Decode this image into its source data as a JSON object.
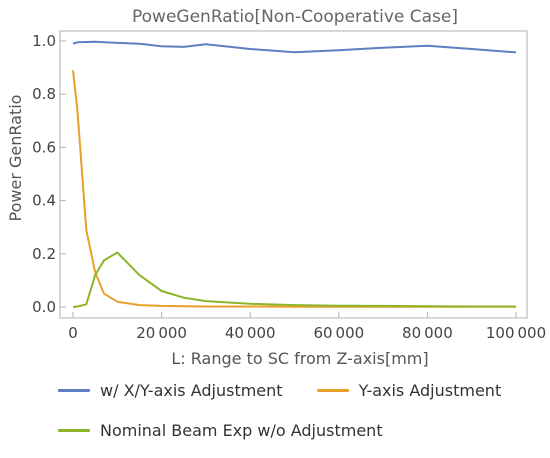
{
  "chart_data": {
    "type": "line",
    "title": "PoweGenRatio[Non-Cooperative Case]",
    "xlabel": "L: Range to SC from Z-axis[mm]",
    "ylabel": "Power GenRatio",
    "xlim": [
      0,
      100000
    ],
    "ylim": [
      0,
      1.0
    ],
    "x_ticks": [
      0,
      20000,
      40000,
      60000,
      80000,
      100000
    ],
    "x_tick_labels": [
      "0",
      "20 000",
      "40 000",
      "60 000",
      "80 000",
      "100 000"
    ],
    "y_ticks": [
      0.0,
      0.2,
      0.4,
      0.6,
      0.8,
      1.0
    ],
    "y_tick_labels": [
      "0.0",
      "0.2",
      "0.4",
      "0.6",
      "0.8",
      "1.0"
    ],
    "grid": false,
    "legend_position": "bottom",
    "series": [
      {
        "name": "w/ X/Y-axis Adjustment",
        "color": "#5b7fc1",
        "x": [
          0,
          1000,
          5000,
          10000,
          15000,
          20000,
          25000,
          30000,
          40000,
          50000,
          60000,
          70000,
          80000,
          90000,
          100000
        ],
        "y": [
          0.99,
          0.995,
          0.997,
          0.993,
          0.99,
          0.98,
          0.978,
          0.988,
          0.97,
          0.958,
          0.965,
          0.975,
          0.982,
          0.97,
          0.957
        ]
      },
      {
        "name": "Y-axis Adjustment",
        "color": "#e8a02a",
        "x": [
          0,
          1000,
          3000,
          5000,
          7000,
          10000,
          15000,
          20000,
          25000,
          30000,
          40000,
          50000,
          60000,
          70000,
          80000,
          90000,
          100000
        ],
        "y": [
          0.89,
          0.74,
          0.29,
          0.13,
          0.05,
          0.02,
          0.007,
          0.004,
          0.003,
          0.002,
          0.002,
          0.001,
          0.001,
          0.001,
          0.001,
          0.001,
          0.001
        ]
      },
      {
        "name": "Nominal Beam Exp w/o Adjustment",
        "color": "#8cb529",
        "x": [
          0,
          1000,
          3000,
          5000,
          7000,
          10000,
          15000,
          20000,
          25000,
          30000,
          40000,
          50000,
          60000,
          70000,
          80000,
          90000,
          100000
        ],
        "y": [
          0.0,
          0.002,
          0.01,
          0.12,
          0.175,
          0.205,
          0.12,
          0.06,
          0.035,
          0.022,
          0.012,
          0.007,
          0.005,
          0.004,
          0.003,
          0.002,
          0.002
        ]
      }
    ]
  }
}
